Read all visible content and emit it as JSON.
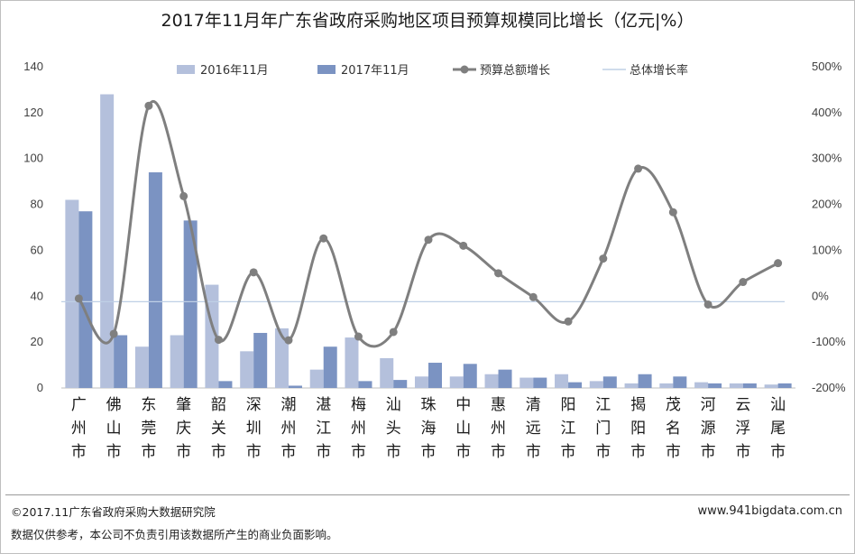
{
  "title": "2017年11月年广东省政府采购地区项目预算规模同比增长（亿元|%）",
  "footer": {
    "copyright": "©2017.11广东省政府采购大数据研究院",
    "website": "www.941bigdata.com.cn",
    "disclaimer": "数据仅供参考，本公司不负责引用该数据所产生的商业负面影响。"
  },
  "colors": {
    "series_2016": "#b4c0dc",
    "series_2017": "#7b93c2",
    "growth_line": "#7f7f7f",
    "overall_rate": "#bfd0e6",
    "axis_text": "#404040"
  },
  "chart_data": {
    "type": "bar",
    "categories": [
      "广州市",
      "佛山市",
      "东莞市",
      "肇庆市",
      "韶关市",
      "深圳市",
      "潮州市",
      "湛江市",
      "梅州市",
      "汕头市",
      "珠海市",
      "中山市",
      "惠州市",
      "清远市",
      "阳江市",
      "江门市",
      "揭阳市",
      "茂名市",
      "河源市",
      "云浮市",
      "汕尾市"
    ],
    "series": [
      {
        "name": "2016年11月",
        "type": "bar",
        "axis": "left",
        "values": [
          82,
          128,
          18,
          23,
          45,
          16,
          26,
          8,
          22,
          13,
          5,
          5,
          6,
          4.5,
          6,
          3,
          2,
          2,
          2.5,
          2,
          1.5
        ]
      },
      {
        "name": "2017年11月",
        "type": "bar",
        "axis": "left",
        "values": [
          77,
          23,
          94,
          73,
          3,
          24,
          1,
          18,
          3,
          3.5,
          11,
          10.5,
          8,
          4.5,
          2.5,
          5,
          6,
          5,
          2,
          2,
          2
        ]
      },
      {
        "name": "预算总额增长",
        "type": "line",
        "axis": "right",
        "smooth": true,
        "marker": "circle",
        "values": [
          -5,
          -82,
          415,
          218,
          -95,
          52,
          -96,
          126,
          -88,
          -78,
          123,
          110,
          50,
          -2,
          -55,
          82,
          278,
          183,
          -18,
          31,
          72
        ]
      },
      {
        "name": "总体增长率",
        "type": "line",
        "axis": "right",
        "marker": "none",
        "values": [
          -12,
          -12,
          -12,
          -12,
          -12,
          -12,
          -12,
          -12,
          -12,
          -12,
          -12,
          -12,
          -12,
          -12,
          -12,
          -12,
          -12,
          -12,
          -12,
          -12,
          -12
        ]
      }
    ],
    "y_left": {
      "min": 0,
      "max": 140,
      "ticks": [
        "0",
        "20",
        "40",
        "60",
        "80",
        "100",
        "120",
        "140"
      ]
    },
    "y_right": {
      "min": -200,
      "max": 500,
      "ticks": [
        "-200%",
        "-100%",
        "0%",
        "100%",
        "200%",
        "300%",
        "400%",
        "500%"
      ]
    },
    "legend_position": "top",
    "grid": false
  }
}
